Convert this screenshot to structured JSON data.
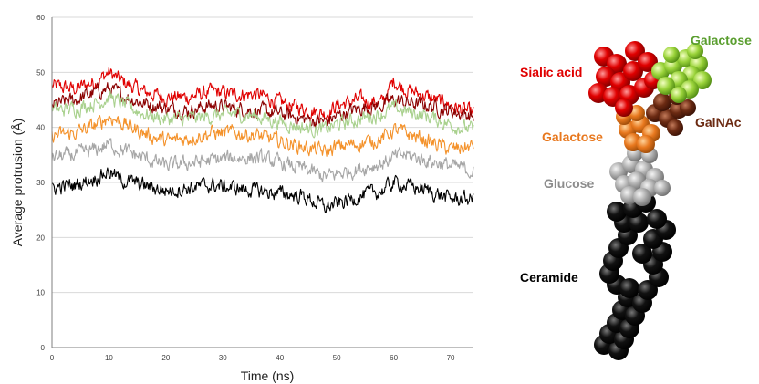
{
  "chart_data": {
    "type": "line",
    "xlabel": "Time (ns)",
    "ylabel": "Average protrusion  (Å)",
    "xlim": [
      0,
      74
    ],
    "ylim": [
      0,
      60
    ],
    "x_ticks": [
      0,
      10,
      20,
      30,
      40,
      50,
      60,
      70
    ],
    "y_ticks": [
      0,
      10,
      20,
      30,
      40,
      50,
      60
    ],
    "grid": "horizontal",
    "x": [
      0,
      4,
      8,
      10,
      12,
      16,
      20,
      24,
      28,
      32,
      36,
      40,
      44,
      48,
      50,
      54,
      58,
      60,
      62,
      66,
      70,
      74
    ],
    "series": [
      {
        "color": "#e00000",
        "values": [
          47.5,
          47,
          48.5,
          50,
          48.5,
          46.5,
          45.5,
          45.5,
          46.5,
          46,
          46,
          44.5,
          43.5,
          42.5,
          44,
          45,
          44.5,
          48.5,
          47,
          45.5,
          44,
          42.5
        ]
      },
      {
        "color": "#8b0000",
        "values": [
          44,
          45,
          46.5,
          47,
          46,
          44.5,
          43.5,
          43,
          44,
          43.5,
          43,
          42.5,
          41.5,
          41,
          42,
          43.5,
          44,
          45,
          44.5,
          44,
          43,
          42
        ]
      },
      {
        "color": "#a9d18e",
        "values": [
          43,
          43.5,
          44.5,
          45.5,
          44.5,
          42.5,
          41.5,
          41.5,
          42,
          42.5,
          42,
          41,
          40,
          39.5,
          40.5,
          41.5,
          42.5,
          43.5,
          43,
          42,
          40.5,
          39.5
        ]
      },
      {
        "color": "#f4922b",
        "values": [
          38.5,
          39,
          40.5,
          42,
          41,
          39,
          37.5,
          38,
          39,
          39,
          38.5,
          37.5,
          36.5,
          35.5,
          36.5,
          37,
          38,
          39.5,
          39,
          37.5,
          36,
          36.5
        ]
      },
      {
        "color": "#a6a6a6",
        "values": [
          34.5,
          35,
          36,
          37,
          36,
          34.5,
          33,
          33.5,
          34,
          34.5,
          34.5,
          33.5,
          32.5,
          31,
          31.5,
          32.5,
          33.5,
          34.5,
          35,
          34,
          33,
          32
        ]
      },
      {
        "color": "#000000",
        "values": [
          29,
          29.5,
          31,
          32,
          30.5,
          29.5,
          28.5,
          29,
          29.5,
          29,
          28.5,
          28,
          27.5,
          25.5,
          26,
          27.5,
          28.5,
          30,
          29.5,
          28.5,
          27,
          27
        ]
      }
    ]
  },
  "molecule": {
    "labels": [
      {
        "text": "Galactose",
        "color": "#5a9e2f"
      },
      {
        "text": "Sialic acid",
        "color": "#e00000"
      },
      {
        "text": "GalNAc",
        "color": "#6b2a12"
      },
      {
        "text": "Galactose",
        "color": "#e8781e"
      },
      {
        "text": "Glucose",
        "color": "#8c8c8c"
      },
      {
        "text": "Ceramide",
        "color": "#000000"
      }
    ]
  }
}
